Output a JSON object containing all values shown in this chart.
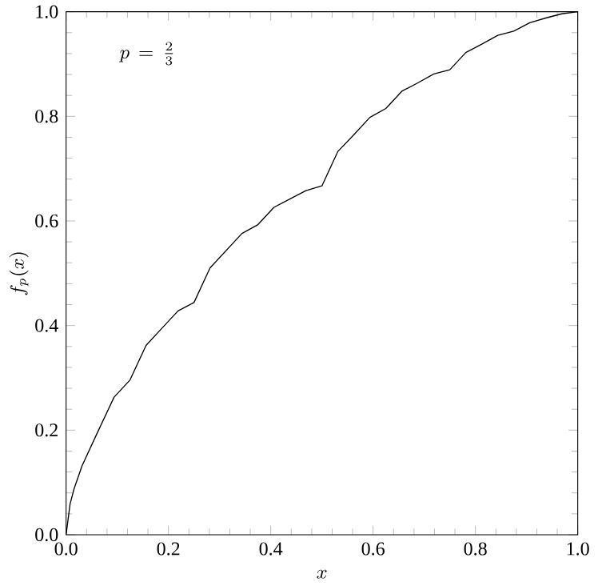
{
  "chart_data": {
    "type": "line",
    "xlabel": "x",
    "ylabel": "f_p(x)",
    "annotations": [
      "p\\, =\\, \\frac{2}{3}"
    ],
    "color": "#000000",
    "x": [
      0,
      0.0078125,
      0.015625,
      0.03125,
      0.0625,
      0.09375,
      0.125,
      0.15625,
      0.1875,
      0.21875,
      0.25,
      0.28125,
      0.3125,
      0.34375,
      0.375,
      0.40625,
      0.4375,
      0.46875,
      0.5,
      0.53125,
      0.5625,
      0.59375,
      0.625,
      0.65625,
      0.6875,
      0.71875,
      0.75,
      0.78125,
      0.8125,
      0.84375,
      0.875,
      0.90625,
      0.9375,
      0.96875,
      1
    ],
    "values": [
      0,
      0.059,
      0.088,
      0.132,
      0.198,
      0.263,
      0.296,
      0.362,
      0.395,
      0.428,
      0.444,
      0.51,
      0.543,
      0.576,
      0.593,
      0.626,
      0.642,
      0.658,
      0.667,
      0.733,
      0.765,
      0.798,
      0.815,
      0.848,
      0.864,
      0.881,
      0.889,
      0.922,
      0.938,
      0.955,
      0.963,
      0.979,
      0.988,
      0.996,
      1
    ],
    "xlim": [
      0,
      1
    ],
    "ylim": [
      0,
      1
    ],
    "xticks": [
      {
        "value": 0,
        "label": "0.0"
      },
      {
        "value": 0.2,
        "label": "0.2"
      },
      {
        "value": 0.4,
        "label": "0.4"
      },
      {
        "value": 0.6,
        "label": "0.6"
      },
      {
        "value": 0.8,
        "label": "0.8"
      },
      {
        "value": 1,
        "label": "1.0"
      }
    ],
    "yticks": [
      {
        "value": 0,
        "label": "0.0"
      },
      {
        "value": 0.2,
        "label": "0.2"
      },
      {
        "value": 0.4,
        "label": "0.4"
      },
      {
        "value": 0.6,
        "label": "0.6"
      },
      {
        "value": 0.8,
        "label": "0.8"
      },
      {
        "value": 1,
        "label": "1.0"
      }
    ]
  }
}
